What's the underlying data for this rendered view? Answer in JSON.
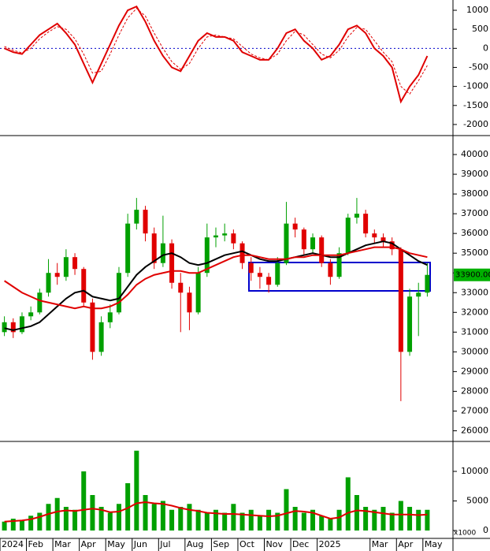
{
  "chart_data": [
    {
      "type": "line",
      "ylim": [
        -2250,
        1270
      ],
      "yticks": [
        1000,
        500,
        0,
        -500,
        -1000,
        -1500,
        -2000
      ],
      "zero_line": true,
      "series": [
        {
          "color": "#e00000",
          "style": "solid",
          "values": [
            0,
            -100,
            -150,
            100,
            350,
            500,
            650,
            400,
            100,
            -400,
            -900,
            -400,
            100,
            600,
            1000,
            1100,
            700,
            200,
            -200,
            -500,
            -600,
            -200,
            200,
            400,
            300,
            300,
            200,
            -100,
            -200,
            -300,
            -300,
            0,
            400,
            500,
            200,
            0,
            -300,
            -200,
            100,
            500,
            600,
            400,
            0,
            -200,
            -500,
            -1400,
            -1000,
            -700,
            -200
          ]
        },
        {
          "color": "#e00000",
          "style": "dashed",
          "values": [
            50,
            -50,
            -120,
            0,
            250,
            430,
            570,
            500,
            250,
            -150,
            -650,
            -600,
            -150,
            350,
            800,
            1050,
            850,
            400,
            0,
            -350,
            -550,
            -400,
            0,
            300,
            350,
            300,
            250,
            50,
            -150,
            -250,
            -300,
            -150,
            200,
            450,
            350,
            100,
            -150,
            -250,
            -50,
            300,
            550,
            500,
            200,
            -100,
            -350,
            -1000,
            -1200,
            -850,
            -450
          ]
        }
      ]
    },
    {
      "type": "candlestick",
      "ylim": [
        25500,
        40800
      ],
      "yticks": [
        26000,
        27000,
        28000,
        29000,
        30000,
        31000,
        32000,
        33000,
        34000,
        35000,
        36000,
        37000,
        38000,
        39000,
        40000
      ],
      "up_color": "#00a000",
      "down_color": "#e00000",
      "last_price_label": "33900.00",
      "open": [
        31000,
        31500,
        31000,
        31800,
        32000,
        33000,
        34000,
        33800,
        34800,
        34200,
        32500,
        30000,
        31500,
        32000,
        34000,
        36500,
        37200,
        36000,
        34500,
        35500,
        33500,
        33000,
        32000,
        34000,
        35800,
        35900,
        36000,
        35500,
        34500,
        34000,
        33800,
        33400,
        34500,
        36500,
        36200,
        35200,
        35800,
        34500,
        33800,
        35000,
        36800,
        37000,
        36000,
        35800,
        35600,
        35200,
        30000,
        32800,
        33000
      ],
      "high": [
        31800,
        31700,
        32000,
        32300,
        33200,
        34700,
        34500,
        35200,
        35000,
        34300,
        32700,
        31800,
        32400,
        34300,
        37000,
        37800,
        37400,
        36300,
        36900,
        35700,
        34000,
        33300,
        34300,
        36500,
        36300,
        36500,
        36200,
        35600,
        34800,
        34300,
        34000,
        34800,
        37600,
        36800,
        36300,
        36000,
        35900,
        34700,
        35300,
        37000,
        37800,
        37200,
        36200,
        36000,
        35800,
        35300,
        33200,
        33500,
        34500
      ],
      "low": [
        30800,
        30700,
        30900,
        31600,
        31900,
        32800,
        33400,
        33600,
        33900,
        32300,
        29600,
        29800,
        31200,
        31900,
        33800,
        36200,
        35600,
        34200,
        34300,
        33200,
        31000,
        31100,
        31900,
        33800,
        35300,
        35600,
        35200,
        34200,
        33600,
        33200,
        33000,
        33300,
        34400,
        35800,
        34900,
        35000,
        34300,
        33400,
        33700,
        34900,
        36500,
        35800,
        35500,
        35300,
        34900,
        27500,
        29800,
        30800,
        32800
      ],
      "close": [
        31500,
        31000,
        31800,
        32000,
        33000,
        34000,
        33800,
        34800,
        34200,
        32500,
        30000,
        31500,
        32000,
        34000,
        36500,
        37200,
        36000,
        34500,
        35500,
        33500,
        33000,
        32000,
        34000,
        35800,
        35900,
        36000,
        35500,
        34500,
        34000,
        33800,
        33400,
        34500,
        36500,
        36200,
        35200,
        35800,
        34500,
        33800,
        35000,
        36800,
        37000,
        36000,
        35800,
        35600,
        35200,
        30000,
        32800,
        33000,
        33900
      ],
      "series": [
        {
          "color": "#000000",
          "values": [
            31200,
            31100,
            31200,
            31300,
            31500,
            31900,
            32300,
            32700,
            33000,
            33100,
            32800,
            32700,
            32600,
            32700,
            33300,
            33900,
            34300,
            34600,
            34900,
            35000,
            34800,
            34500,
            34400,
            34500,
            34700,
            34900,
            35000,
            35100,
            34900,
            34700,
            34600,
            34600,
            34700,
            34800,
            34900,
            35000,
            34900,
            34800,
            34800,
            35000,
            35200,
            35400,
            35500,
            35600,
            35500,
            35200,
            34900,
            34600,
            34400
          ]
        },
        {
          "color": "#e00000",
          "values": [
            33600,
            33300,
            33000,
            32800,
            32600,
            32500,
            32400,
            32300,
            32200,
            32300,
            32200,
            32200,
            32300,
            32500,
            32900,
            33400,
            33700,
            33900,
            34000,
            34100,
            34100,
            34000,
            34000,
            34200,
            34400,
            34600,
            34800,
            34900,
            34900,
            34800,
            34700,
            34700,
            34700,
            34800,
            34800,
            34900,
            34900,
            34900,
            34900,
            35000,
            35100,
            35200,
            35300,
            35300,
            35300,
            35200,
            35000,
            34900,
            34800
          ]
        }
      ]
    },
    {
      "type": "bar",
      "color": "#00a000",
      "ylim": [
        -1200,
        14800
      ],
      "yticks": [
        0,
        5000,
        10000
      ],
      "unit_label": "x1000",
      "categories": [
        "2024",
        null,
        null,
        "Feb",
        null,
        null,
        "Mar",
        null,
        null,
        "Apr",
        null,
        null,
        "May",
        null,
        null,
        "Jun",
        null,
        null,
        "Jul",
        null,
        null,
        "Aug",
        null,
        null,
        "Sep",
        null,
        null,
        "Oct",
        null,
        null,
        "Nov",
        null,
        null,
        "Dec",
        null,
        null,
        "2025",
        null,
        null,
        null,
        null,
        null,
        "Mar",
        null,
        null,
        "Apr",
        null,
        null,
        "May"
      ],
      "values": [
        1500,
        2000,
        1800,
        2500,
        3000,
        4500,
        5500,
        4000,
        3500,
        10000,
        6000,
        4000,
        3000,
        4500,
        8000,
        13500,
        6000,
        4500,
        5000,
        3500,
        4000,
        4500,
        3500,
        3000,
        3500,
        3000,
        4500,
        3000,
        3500,
        2500,
        3500,
        3000,
        7000,
        4000,
        3000,
        3500,
        2500,
        2000,
        3500,
        9000,
        6000,
        4000,
        3500,
        4000,
        3000,
        5000,
        4000,
        3500,
        3500
      ],
      "series": [
        {
          "color": "#e00000",
          "values": [
            1500,
            1600,
            1700,
            1900,
            2300,
            2800,
            3200,
            3400,
            3300,
            3500,
            3700,
            3500,
            3100,
            3200,
            3800,
            4600,
            4800,
            4600,
            4500,
            4200,
            3800,
            3500,
            3300,
            3000,
            2900,
            2800,
            2800,
            2700,
            2600,
            2500,
            2400,
            2500,
            2900,
            3300,
            3200,
            3000,
            2500,
            2000,
            2200,
            3000,
            3400,
            3300,
            3100,
            2900,
            2700,
            2700,
            2700,
            2600,
            2700
          ]
        }
      ]
    }
  ]
}
